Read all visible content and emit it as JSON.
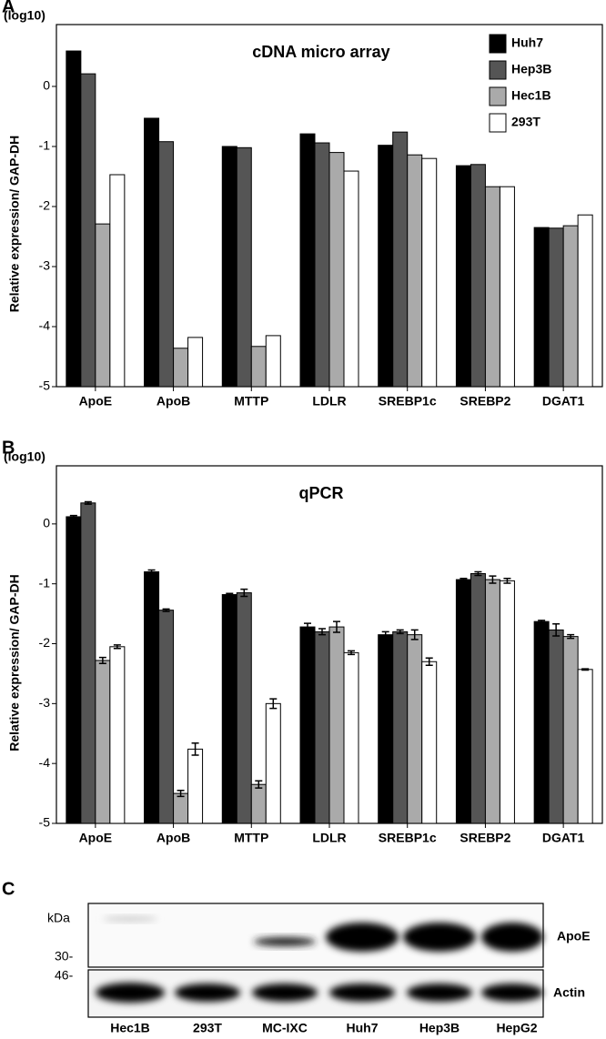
{
  "chart_data": [
    {
      "type": "bar",
      "panel": "A",
      "title": "cDNA micro array",
      "y_unit": "(log10)",
      "y_label": "Relative expression/ GAP-DH",
      "categories": [
        "ApoE",
        "ApoB",
        "MTTP",
        "LDLR",
        "SREBP1c",
        "SREBP2",
        "DGAT1"
      ],
      "series": [
        {
          "name": "Huh7",
          "color": "#000000",
          "values": [
            0.59,
            -0.53,
            -1.0,
            -0.79,
            -0.98,
            -1.32,
            -2.35
          ]
        },
        {
          "name": "Hep3B",
          "color": "#555555",
          "values": [
            0.21,
            -0.92,
            -1.02,
            -0.94,
            -0.76,
            -1.3,
            -2.36
          ]
        },
        {
          "name": "Hec1B",
          "color": "#aaaaaa",
          "values": [
            -2.29,
            -4.36,
            -4.33,
            -1.1,
            -1.14,
            -1.67,
            -2.32
          ]
        },
        {
          "name": "293T",
          "color": "#ffffff",
          "values": [
            -1.47,
            -4.18,
            -4.15,
            -1.41,
            -1.2,
            -1.67,
            -2.14
          ]
        }
      ],
      "ylim": [
        -5,
        1.03
      ],
      "yticks": [
        -5,
        -4,
        -3,
        -2,
        -1,
        0
      ],
      "legend": "top-right"
    },
    {
      "type": "bar",
      "panel": "B",
      "title": "qPCR",
      "y_unit": "(log10)",
      "y_label": "Relative expression/ GAP-DH",
      "categories": [
        "ApoE",
        "ApoB",
        "MTTP",
        "LDLR",
        "SREBP1c",
        "SREBP2",
        "DGAT1"
      ],
      "series": [
        {
          "color": "#000000",
          "values": [
            0.12,
            -0.8,
            -1.18,
            -1.72,
            -1.85,
            -0.93,
            -1.63
          ],
          "errors": [
            0.02,
            0.03,
            0.02,
            0.06,
            0.05,
            0.02,
            0.02
          ]
        },
        {
          "color": "#555555",
          "values": [
            0.35,
            -1.44,
            -1.15,
            -1.8,
            -1.8,
            -0.83,
            -1.77
          ],
          "errors": [
            0.02,
            0.02,
            0.06,
            0.05,
            0.03,
            0.03,
            0.1
          ]
        },
        {
          "color": "#aaaaaa",
          "values": [
            -2.28,
            -4.5,
            -4.35,
            -1.72,
            -1.85,
            -0.93,
            -1.88
          ],
          "errors": [
            0.05,
            0.05,
            0.06,
            0.09,
            0.08,
            0.06,
            0.03
          ]
        },
        {
          "color": "#ffffff",
          "values": [
            -2.05,
            -3.76,
            -3.0,
            -2.15,
            -2.3,
            -0.95,
            -2.43
          ],
          "errors": [
            0.03,
            0.1,
            0.08,
            0.03,
            0.06,
            0.04,
            0.01
          ]
        }
      ],
      "ylim": [
        -5,
        0.97
      ],
      "yticks": [
        -5,
        -4,
        -3,
        -2,
        -1,
        0
      ]
    }
  ],
  "blot": {
    "panel": "C",
    "marker_unit": "kDa",
    "markers": [
      "30-",
      "46-"
    ],
    "bands": [
      "ApoE",
      "Actin"
    ],
    "lanes": [
      "Hec1B",
      "293T",
      "MC-IXC",
      "Huh7",
      "Hep3B",
      "HepG2"
    ]
  }
}
